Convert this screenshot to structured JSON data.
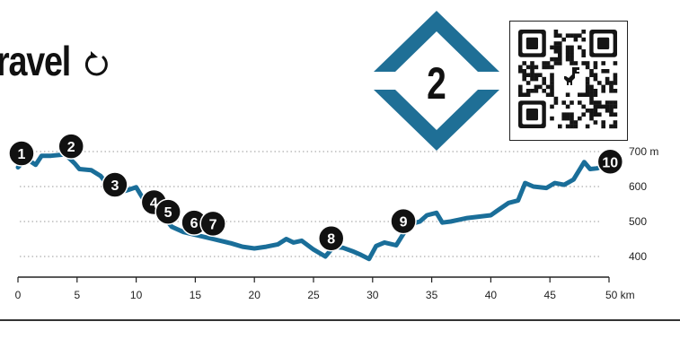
{
  "header": {
    "title": "ravel",
    "replay_icon": "replay-icon"
  },
  "stage_badge": {
    "number": "2",
    "color": "#1f6f96"
  },
  "qr": {
    "icon": "qr-code-icon",
    "center_icon": "dinosaur-icon"
  },
  "chart_data": {
    "type": "line",
    "title": "",
    "xlabel": "",
    "ylabel": "",
    "x_unit": "km",
    "y_unit": "m",
    "xlim": [
      0,
      50
    ],
    "ylim": [
      380,
      715
    ],
    "grid": true,
    "line_color": "#1a6e99",
    "x_ticks": [
      "0",
      "5",
      "10",
      "15",
      "20",
      "25",
      "30",
      "35",
      "40",
      "45",
      "50 km"
    ],
    "x_tick_values": [
      0,
      5,
      10,
      15,
      20,
      25,
      30,
      35,
      40,
      45,
      50
    ],
    "y_ticks": [
      "400",
      "500",
      "600",
      "700 m"
    ],
    "y_tick_values": [
      400,
      500,
      600,
      700
    ],
    "series": [
      {
        "x": [
          0,
          0.7,
          1.5,
          2.0,
          2.8,
          4.0,
          4.8,
          5.2,
          6.2,
          7.0,
          7.8,
          8.5,
          9.3,
          10.0,
          10.5,
          11.2,
          11.8,
          12.3,
          13.0,
          14.0,
          15.0,
          16.5,
          18.0,
          19.0,
          20.0,
          21.0,
          22.0,
          22.7,
          23.3,
          24.0,
          25.0,
          26.0,
          26.7,
          27.5,
          28.3,
          29.0,
          29.7,
          30.3,
          31.0,
          32.0,
          32.7,
          33.5,
          34.0,
          34.6,
          35.4,
          35.9,
          36.6,
          38.0,
          40.0,
          40.5,
          41.5,
          42.3,
          42.9,
          43.6,
          44.7,
          45.4,
          46.2,
          47.0,
          47.9,
          48.4,
          49.0,
          49.6,
          50.0
        ],
        "y": [
          655,
          680,
          662,
          688,
          688,
          692,
          666,
          650,
          647,
          630,
          597,
          582,
          590,
          598,
          570,
          540,
          520,
          515,
          485,
          470,
          462,
          450,
          438,
          428,
          423,
          428,
          435,
          450,
          440,
          445,
          420,
          400,
          428,
          425,
          415,
          405,
          393,
          430,
          440,
          432,
          470,
          495,
          500,
          518,
          525,
          497,
          500,
          510,
          518,
          530,
          553,
          560,
          610,
          600,
          596,
          610,
          605,
          620,
          670,
          650,
          652,
          660,
          665
        ]
      }
    ],
    "markers": [
      {
        "label": "1",
        "x": 0.3,
        "y": 695
      },
      {
        "label": "2",
        "x": 4.5,
        "y": 715
      },
      {
        "label": "3",
        "x": 8.2,
        "y": 605
      },
      {
        "label": "4",
        "x": 11.5,
        "y": 555
      },
      {
        "label": "5",
        "x": 12.7,
        "y": 528
      },
      {
        "label": "6",
        "x": 14.9,
        "y": 497
      },
      {
        "label": "7",
        "x": 16.5,
        "y": 494
      },
      {
        "label": "8",
        "x": 26.5,
        "y": 452
      },
      {
        "label": "9",
        "x": 32.6,
        "y": 501
      },
      {
        "label": "10",
        "x": 50.1,
        "y": 671
      }
    ]
  }
}
